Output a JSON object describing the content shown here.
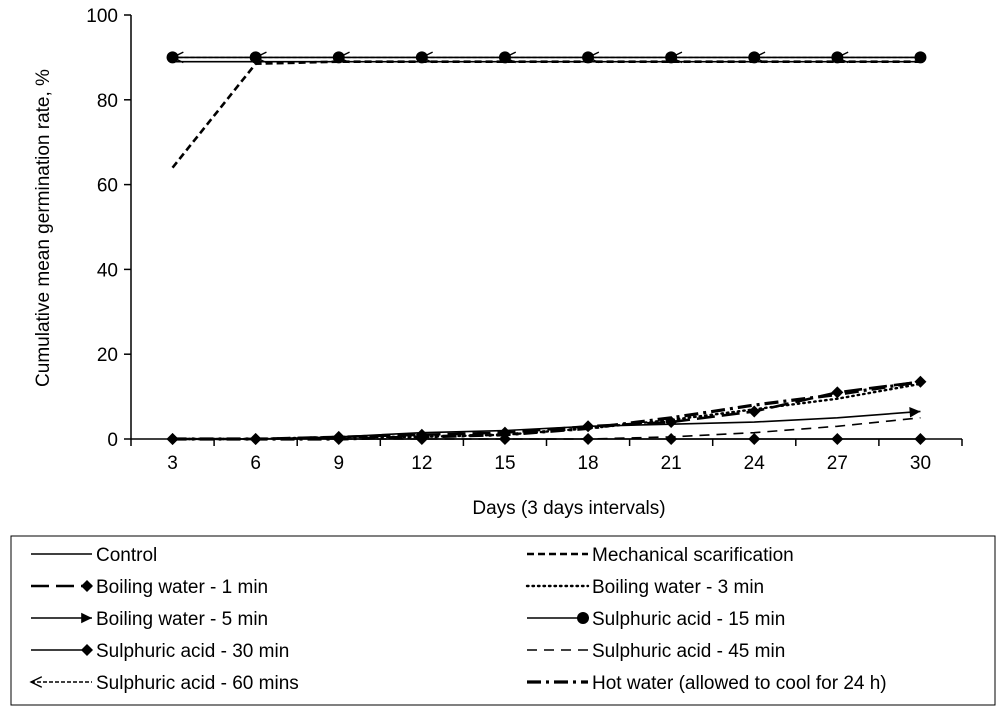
{
  "chart_data": {
    "type": "line",
    "title": "",
    "xlabel": "Days (3 days intervals)",
    "ylabel": "Cumulative mean germination rate, %",
    "x": [
      3,
      6,
      9,
      12,
      15,
      18,
      21,
      24,
      27,
      30
    ],
    "x_tick_labels": [
      "3",
      "6",
      "9",
      "12",
      "15",
      "18",
      "21",
      "24",
      "27",
      "30"
    ],
    "xlim": [
      1.5,
      31.5
    ],
    "ylim": [
      0,
      100
    ],
    "y_ticks": [
      0,
      20,
      40,
      60,
      80,
      100
    ],
    "y_tick_labels": [
      "0",
      "20",
      "40",
      "60",
      "80",
      "100"
    ],
    "grid": false,
    "legend_position": "bottom",
    "series": [
      {
        "name": "Control",
        "style": "solid",
        "marker": "none",
        "values": [
          89,
          89,
          89,
          89,
          89,
          89,
          89,
          89,
          89,
          89
        ]
      },
      {
        "name": "Mechanical scarification",
        "style": "shortdash",
        "marker": "none",
        "values": [
          64,
          88.5,
          89,
          89,
          89,
          89,
          89,
          89,
          89,
          89
        ]
      },
      {
        "name": "Boiling water  - 1 min",
        "style": "longdash",
        "marker": "diamond",
        "values": [
          0,
          0,
          0.5,
          1,
          1.5,
          3,
          4,
          6.5,
          11,
          13.5
        ]
      },
      {
        "name": "Boiling water  - 3 min",
        "style": "dot",
        "marker": "none",
        "values": [
          0,
          0,
          0.5,
          0.5,
          1,
          2.5,
          4.5,
          7,
          9.5,
          13
        ]
      },
      {
        "name": "Boiling water  - 5 min",
        "style": "solid",
        "marker": "arrow",
        "values": [
          0,
          0,
          0.5,
          1.5,
          2,
          3,
          3.5,
          4,
          5,
          6.5
        ]
      },
      {
        "name": "Sulphuric acid  - 15 min",
        "style": "solid",
        "marker": "circle",
        "values": [
          90,
          90,
          90,
          90,
          90,
          90,
          90,
          90,
          90,
          90
        ]
      },
      {
        "name": "Sulphuric acid  - 30 min",
        "style": "solid",
        "marker": "diamond",
        "values": [
          0,
          0,
          0,
          0,
          0,
          0,
          0,
          0,
          0,
          0
        ]
      },
      {
        "name": "Sulphuric acid  - 45 min",
        "style": "dash",
        "marker": "none",
        "values": [
          0,
          0,
          0,
          0,
          0,
          0,
          0.5,
          1.5,
          3,
          5
        ]
      },
      {
        "name": "Sulphuric acid  - 60 mins",
        "style": "finedash",
        "marker": "open-arrow",
        "values": [
          90,
          90,
          90,
          90,
          90,
          90,
          90,
          90,
          90,
          90
        ]
      },
      {
        "name": "Hot water (allowed to cool for 24 h)",
        "style": "dashdot",
        "marker": "none",
        "values": [
          0,
          0,
          0,
          0.5,
          1,
          2.5,
          5,
          8,
          10.5,
          13.5
        ]
      }
    ]
  }
}
